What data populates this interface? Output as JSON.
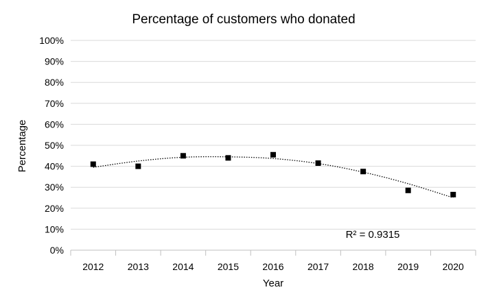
{
  "chart_data": {
    "type": "scatter",
    "title": "Percentage of customers who donated",
    "xlabel": "Year",
    "ylabel": "Percentage",
    "categories": [
      "2012",
      "2013",
      "2014",
      "2015",
      "2016",
      "2017",
      "2018",
      "2019",
      "2020"
    ],
    "values": [
      0.41,
      0.4,
      0.45,
      0.44,
      0.455,
      0.415,
      0.375,
      0.285,
      0.265
    ],
    "ylim": [
      0,
      1
    ],
    "yticks": [
      0,
      0.1,
      0.2,
      0.3,
      0.4,
      0.5,
      0.6,
      0.7,
      0.8,
      0.9,
      1.0
    ],
    "ytick_labels": [
      "0%",
      "10%",
      "20%",
      "30%",
      "40%",
      "50%",
      "60%",
      "70%",
      "80%",
      "90%",
      "100%"
    ],
    "grid": true,
    "marker": "square",
    "marker_color": "#000000",
    "trendline": {
      "type": "polynomial",
      "style": "dotted",
      "values": [
        0.395,
        0.425,
        0.443,
        0.445,
        0.437,
        0.413,
        0.372,
        0.317,
        0.25
      ],
      "r_squared_label": "R² = 0.9315"
    }
  }
}
